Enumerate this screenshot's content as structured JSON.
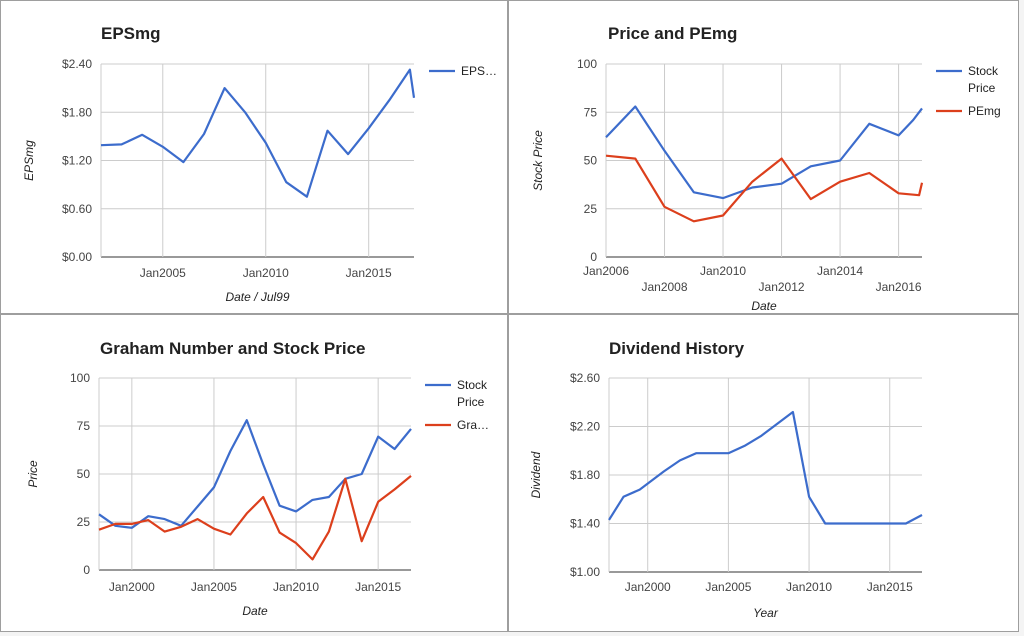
{
  "colors": {
    "blue": "#3c6ccc",
    "red": "#dc3f1c",
    "grid": "#cccccc",
    "text": "#222222",
    "axis": "#444444"
  },
  "chart_data": [
    {
      "type": "line",
      "title": "EPSmg",
      "xlabel": "Date / Jul99",
      "ylabel": "EPSmg",
      "y_tick_labels": [
        "$0.00",
        "$0.60",
        "$1.20",
        "$1.80",
        "$2.40"
      ],
      "y_tick_values": [
        0,
        0.6,
        1.2,
        1.8,
        2.4
      ],
      "ylim": [
        0,
        2.4
      ],
      "x_tick_labels": [
        "Jan2005",
        "Jan2010",
        "Jan2015"
      ],
      "x_tick_values": [
        2005,
        2010,
        2015
      ],
      "xlim": [
        2002,
        2017.2
      ],
      "legend_position": "right",
      "series": [
        {
          "name": "EPS…",
          "color": "#3c6ccc",
          "x": [
            2002,
            2003,
            2004,
            2005,
            2006,
            2007,
            2008,
            2009,
            2010,
            2011,
            2012,
            2013,
            2014,
            2015,
            2016,
            2017,
            2017.2
          ],
          "y": [
            1.39,
            1.4,
            1.52,
            1.37,
            1.18,
            1.53,
            2.1,
            1.8,
            1.42,
            0.93,
            0.75,
            1.57,
            1.28,
            1.6,
            1.95,
            2.33,
            1.98
          ]
        }
      ]
    },
    {
      "type": "line",
      "title": "Price and PEmg",
      "xlabel": "Date",
      "ylabel": "Stock Price",
      "y_tick_labels": [
        "0",
        "25",
        "50",
        "75",
        "100"
      ],
      "y_tick_values": [
        0,
        25,
        50,
        75,
        100
      ],
      "ylim": [
        0,
        100
      ],
      "x_tick_labels": [
        "Jan2006",
        "Jan2008",
        "Jan2010",
        "Jan2012",
        "Jan2014",
        "Jan2016"
      ],
      "x_tick_values": [
        2006,
        2008,
        2010,
        2012,
        2014,
        2016
      ],
      "x_tick_staggered": [
        false,
        true,
        false,
        true,
        false,
        true
      ],
      "xlim": [
        2006,
        2016.8
      ],
      "legend_position": "right",
      "series": [
        {
          "name": "Stock Price",
          "color": "#3c6ccc",
          "x": [
            2006,
            2007,
            2008,
            2009,
            2010,
            2011,
            2012,
            2013,
            2014,
            2015,
            2016,
            2016.5,
            2016.8
          ],
          "y": [
            62,
            78,
            55,
            33.5,
            30.5,
            36,
            38,
            47,
            50,
            69,
            63,
            71,
            77
          ]
        },
        {
          "name": "PEmg",
          "color": "#dc3f1c",
          "x": [
            2006,
            2007,
            2008,
            2009,
            2010,
            2011,
            2012,
            2013,
            2014,
            2015,
            2016,
            2016.7,
            2016.8
          ],
          "y": [
            52.5,
            51,
            26,
            18.5,
            21.5,
            39,
            51,
            30,
            39,
            43.5,
            33,
            32,
            38.5
          ]
        }
      ]
    },
    {
      "type": "line",
      "title": "Graham Number and Stock Price",
      "xlabel": "Date",
      "ylabel": "Price",
      "y_tick_labels": [
        "0",
        "25",
        "50",
        "75",
        "100"
      ],
      "y_tick_values": [
        0,
        25,
        50,
        75,
        100
      ],
      "ylim": [
        0,
        100
      ],
      "x_tick_labels": [
        "Jan2000",
        "Jan2005",
        "Jan2010",
        "Jan2015"
      ],
      "x_tick_values": [
        2000,
        2005,
        2010,
        2015
      ],
      "xlim": [
        1998,
        2017
      ],
      "legend_position": "right",
      "series": [
        {
          "name": "Stock Price",
          "color": "#3c6ccc",
          "x": [
            1998,
            1999,
            2000,
            2001,
            2002,
            2003,
            2004,
            2005,
            2006,
            2007,
            2008,
            2009,
            2010,
            2011,
            2012,
            2013,
            2014,
            2015,
            2016,
            2017
          ],
          "y": [
            29,
            23,
            22,
            28,
            26.5,
            23,
            33,
            43,
            62,
            78,
            55,
            33.5,
            30.5,
            36.5,
            38,
            47.5,
            50,
            69.5,
            63,
            73.5
          ]
        },
        {
          "name": "Gra…",
          "color": "#dc3f1c",
          "x": [
            1998,
            1999,
            2000,
            2001,
            2002,
            2003,
            2004,
            2005,
            2006,
            2007,
            2008,
            2009,
            2010,
            2011,
            2012,
            2013,
            2014,
            2015,
            2016,
            2017
          ],
          "y": [
            21,
            24,
            24,
            26,
            20,
            22.5,
            26.5,
            21.5,
            18.5,
            29.5,
            38,
            19.5,
            14,
            5.5,
            20,
            47.5,
            15,
            35.5,
            42,
            49
          ]
        }
      ]
    },
    {
      "type": "line",
      "title": "Dividend History",
      "xlabel": "Year",
      "ylabel": "Dividend",
      "y_tick_labels": [
        "$1.00",
        "$1.40",
        "$1.80",
        "$2.20",
        "$2.60"
      ],
      "y_tick_values": [
        1.0,
        1.4,
        1.8,
        2.2,
        2.6
      ],
      "ylim": [
        1.0,
        2.6
      ],
      "x_tick_labels": [
        "Jan2000",
        "Jan2005",
        "Jan2010",
        "Jan2015"
      ],
      "x_tick_values": [
        2000,
        2005,
        2010,
        2015
      ],
      "xlim": [
        1997.6,
        2017
      ],
      "legend_position": "none",
      "series": [
        {
          "name": "",
          "color": "#3c6ccc",
          "x": [
            1997.6,
            1998.5,
            1999.5,
            2001,
            2002,
            2003,
            2004,
            2005,
            2006,
            2007,
            2008,
            2009,
            2010,
            2011,
            2012,
            2013,
            2014,
            2015,
            2016,
            2017
          ],
          "y": [
            1.43,
            1.62,
            1.68,
            1.83,
            1.92,
            1.98,
            1.98,
            1.98,
            2.04,
            2.12,
            2.22,
            2.32,
            1.62,
            1.4,
            1.4,
            1.4,
            1.4,
            1.4,
            1.4,
            1.47
          ]
        }
      ]
    }
  ]
}
